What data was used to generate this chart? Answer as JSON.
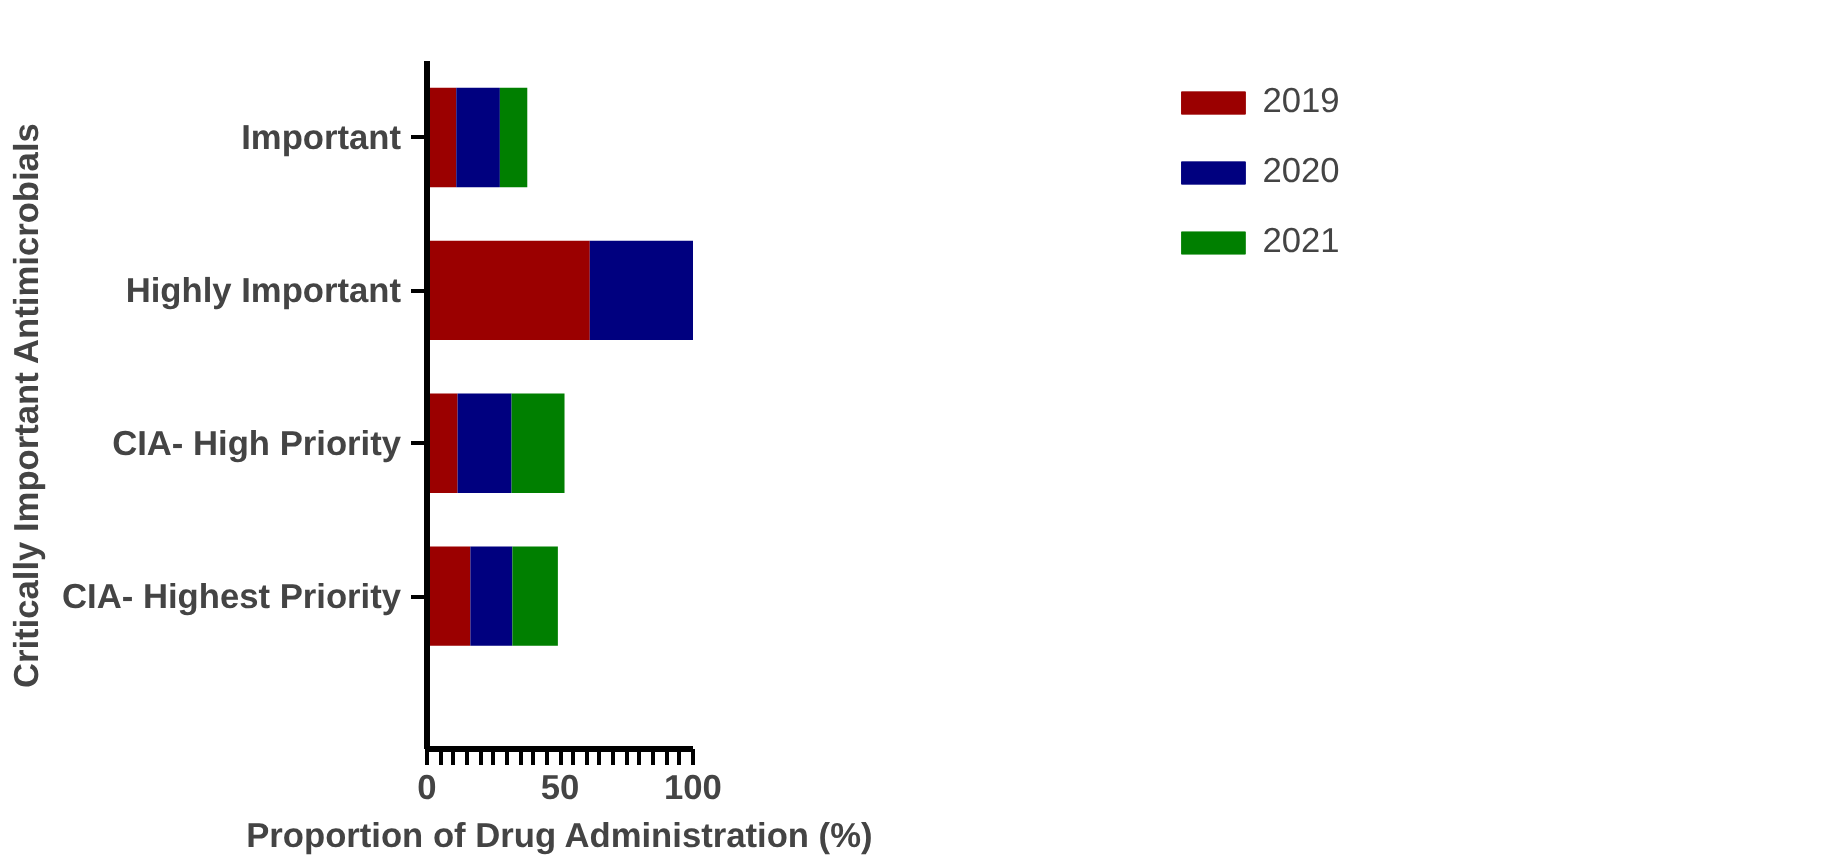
{
  "chart_data": {
    "type": "bar",
    "orientation": "horizontal",
    "stacked": true,
    "xlabel": "Proportion of Drug Administration (%)",
    "ylabel": "Critically Important Antimicrobials",
    "categories": [
      "Important",
      "Highly Important",
      "CIA- High Priority",
      "CIA- Highest Priority"
    ],
    "series": [
      {
        "name": "2019",
        "color": "#9b0000",
        "values": [
          11.0,
          61.2,
          11.5,
          16.3
        ]
      },
      {
        "name": "2020",
        "color": "#00007f",
        "values": [
          16.4,
          38.8,
          20.3,
          15.8
        ]
      },
      {
        "name": "2021",
        "color": "#007f00",
        "values": [
          10.3,
          null,
          19.9,
          17.1
        ]
      }
    ],
    "xlim": [
      0,
      100
    ],
    "xticks": [
      0,
      {
        "value": 5,
        "label": null
      },
      {
        "value": 10,
        "label": null
      },
      {
        "value": 15,
        "label": null
      },
      {
        "value": 20,
        "label": null
      },
      {
        "value": 25,
        "label": null
      },
      {
        "value": 30,
        "label": null
      },
      {
        "value": 35,
        "label": null
      },
      {
        "value": 40,
        "label": null
      },
      {
        "value": 45,
        "label": null
      },
      50,
      {
        "value": 55,
        "label": null
      },
      {
        "value": 60,
        "label": null
      },
      {
        "value": 65,
        "label": null
      },
      {
        "value": 70,
        "label": null
      },
      {
        "value": 75,
        "label": null
      },
      {
        "value": 80,
        "label": null
      },
      {
        "value": 85,
        "label": null
      },
      {
        "value": 90,
        "label": null
      },
      {
        "value": 95,
        "label": null
      },
      100
    ],
    "grid": false,
    "legend": "top right"
  }
}
